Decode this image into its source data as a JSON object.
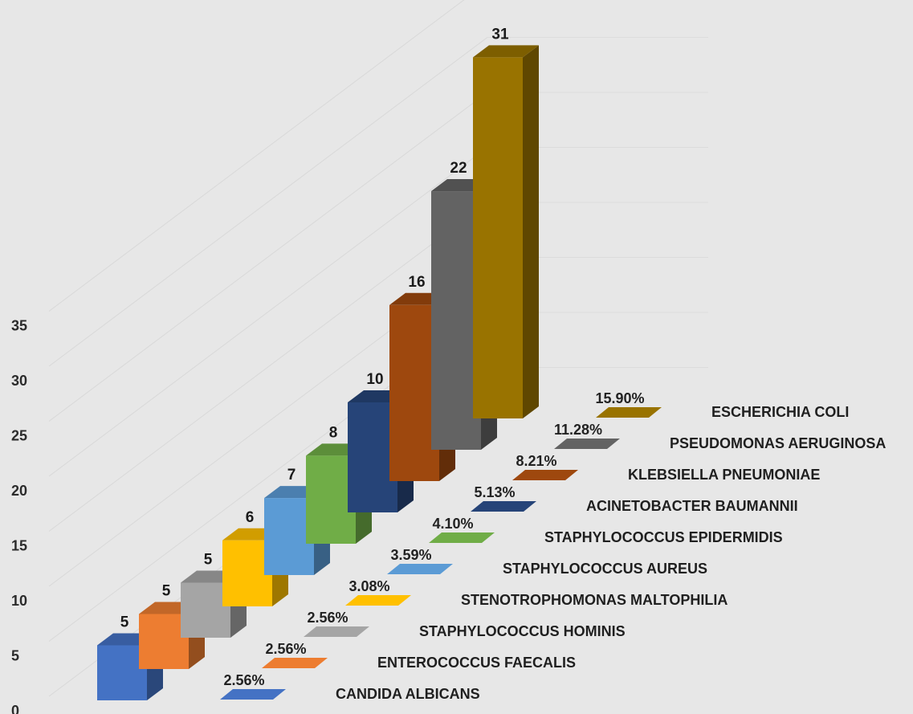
{
  "chart_data": {
    "type": "bar",
    "style": "3d-column",
    "categories": [
      "CANDIDA ALBICANS",
      "ENTEROCOCCUS FAECALIS",
      "STAPHYLOCOCCUS HOMINIS",
      "STENOTROPHOMONAS MALTOPHILIA",
      "STAPHYLOCOCCUS AUREUS",
      "STAPHYLOCOCCUS EPIDERMIDIS",
      "ACINETOBACTER BAUMANNII",
      "KLEBSIELLA PNEUMONIAE",
      "PSEUDOMONAS AERUGINOSA",
      "ESCHERICHIA COLI"
    ],
    "series": [
      {
        "values": [
          5,
          5,
          5,
          6,
          7,
          8,
          10,
          16,
          22,
          31
        ],
        "value_labels": [
          "5",
          "5",
          "5",
          "6",
          "7",
          "8",
          "10",
          "16",
          "22",
          "31"
        ]
      },
      {
        "values": [
          2.56,
          2.56,
          2.56,
          3.08,
          3.59,
          4.1,
          5.13,
          8.21,
          11.28,
          15.9
        ],
        "value_labels": [
          "2.56%",
          "2.56%",
          "2.56%",
          "3.08%",
          "3.59%",
          "4.10%",
          "5.13%",
          "8.21%",
          "11.28%",
          "15.90%"
        ]
      }
    ],
    "colors": [
      "#4472c4",
      "#ed7d31",
      "#a5a5a5",
      "#ffc000",
      "#5b9bd5",
      "#70ad47",
      "#264478",
      "#9e480e",
      "#636363",
      "#997300"
    ],
    "yticks": [
      "0",
      "5",
      "10",
      "15",
      "20",
      "25",
      "30",
      "35"
    ],
    "ylim": [
      0,
      35
    ],
    "grid": true,
    "legend": "none"
  }
}
